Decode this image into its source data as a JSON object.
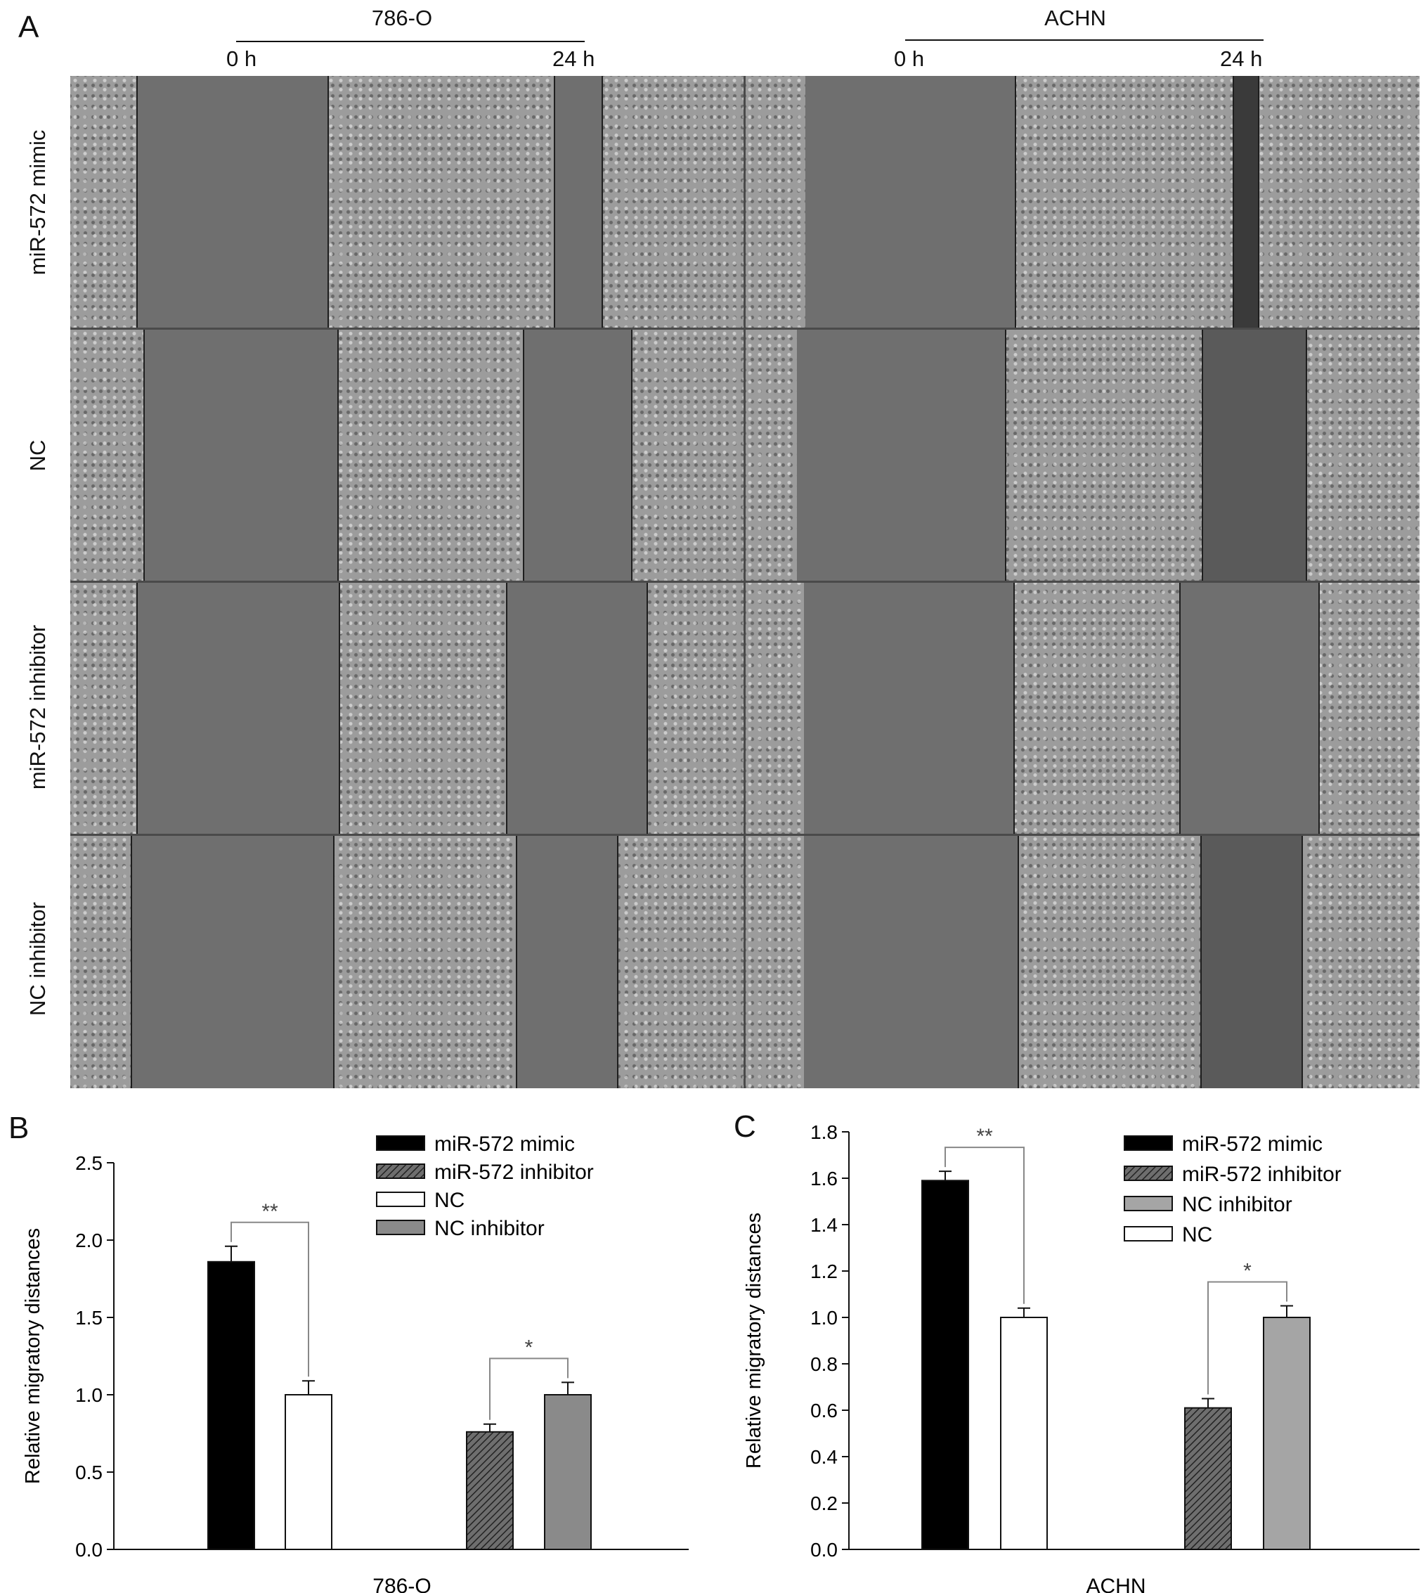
{
  "figure": {
    "panel_a": {
      "letter": "A",
      "cell_lines": [
        {
          "name": "786-O",
          "time_start": "0 h",
          "time_end": "24 h"
        },
        {
          "name": "ACHN",
          "time_start": "0 h",
          "time_end": "24 h"
        }
      ],
      "row_labels": [
        "miR-572 mimic",
        "NC",
        "miR-572 inhibitor",
        "NC inhibitor"
      ]
    },
    "panel_b": {
      "letter": "B"
    },
    "panel_c": {
      "letter": "C"
    }
  },
  "chart_data": [
    {
      "type": "bar",
      "panel": "B",
      "xlabel": "786-O",
      "ylabel": "Relative migratory distances",
      "ylim": [
        0,
        2.5
      ],
      "yticks": [
        "0.0",
        "0.5",
        "1.0",
        "1.5",
        "2.0",
        "2.5"
      ],
      "legend_position": "top-right",
      "series": [
        {
          "name": "miR-572 mimic",
          "value": 1.86,
          "error": 0.1,
          "fill": "#000000",
          "pattern": "solid"
        },
        {
          "name": "NC",
          "value": 1.0,
          "error": 0.09,
          "fill": "#ffffff",
          "pattern": "solid"
        },
        {
          "name": "miR-572 inhibitor",
          "value": 0.76,
          "error": 0.05,
          "fill": "#555555",
          "pattern": "hatch"
        },
        {
          "name": "NC inhibitor",
          "value": 1.0,
          "error": 0.08,
          "fill": "#8a8a8a",
          "pattern": "solid"
        }
      ],
      "legend_order": [
        "miR-572 mimic",
        "miR-572 inhibitor",
        "NC",
        "NC inhibitor"
      ],
      "significance": [
        {
          "between": [
            "miR-572 mimic",
            "NC"
          ],
          "label": "**"
        },
        {
          "between": [
            "miR-572 inhibitor",
            "NC inhibitor"
          ],
          "label": "*"
        }
      ]
    },
    {
      "type": "bar",
      "panel": "C",
      "xlabel": "ACHN",
      "ylabel": "Relative migratory distances",
      "ylim": [
        0,
        1.8
      ],
      "yticks": [
        "0.0",
        "0.2",
        "0.4",
        "0.6",
        "0.8",
        "1.0",
        "1.2",
        "1.4",
        "1.6",
        "1.8"
      ],
      "legend_position": "top-right",
      "series": [
        {
          "name": "miR-572 mimic",
          "value": 1.59,
          "error": 0.04,
          "fill": "#000000",
          "pattern": "solid"
        },
        {
          "name": "NC",
          "value": 1.0,
          "error": 0.04,
          "fill": "#ffffff",
          "pattern": "solid"
        },
        {
          "name": "miR-572 inhibitor",
          "value": 0.61,
          "error": 0.04,
          "fill": "#555555",
          "pattern": "hatch"
        },
        {
          "name": "NC inhibitor",
          "value": 1.0,
          "error": 0.05,
          "fill": "#a5a5a5",
          "pattern": "solid"
        }
      ],
      "legend_order": [
        "miR-572 mimic",
        "miR-572 inhibitor",
        "NC inhibitor",
        "NC"
      ],
      "significance": [
        {
          "between": [
            "miR-572 mimic",
            "NC"
          ],
          "label": "**"
        },
        {
          "between": [
            "miR-572 inhibitor",
            "NC inhibitor"
          ],
          "label": "*"
        }
      ]
    }
  ]
}
